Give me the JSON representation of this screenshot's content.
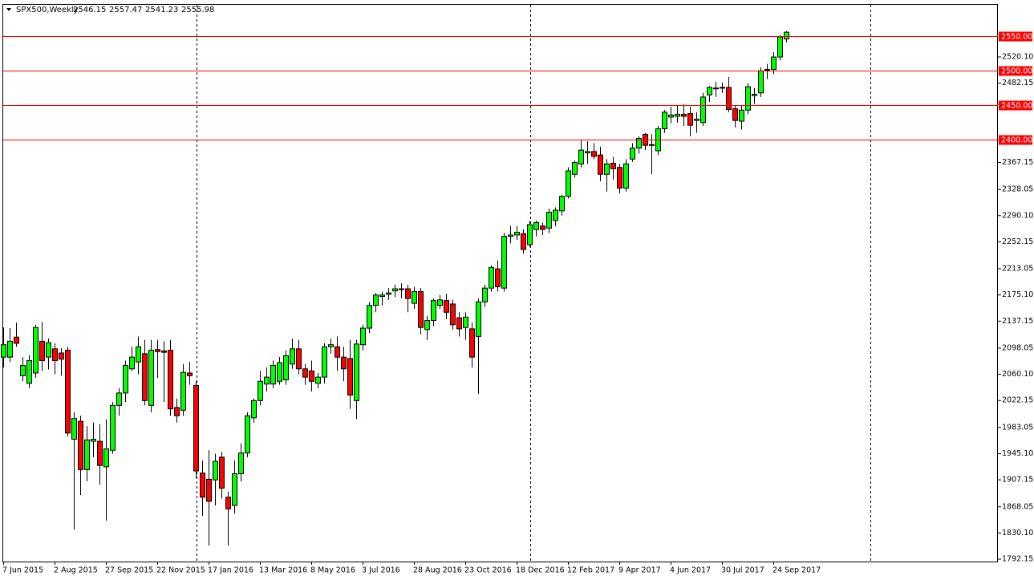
{
  "chart_data": {
    "type": "candlestick",
    "title": "SPX500,Weekly",
    "up_color": "#00ff00",
    "down_color": "#ff0000",
    "level_color": "#ff0000",
    "ylim": [
      1788.7,
      2596.8
    ],
    "yticks": [
      {
        "value": 2520.1,
        "label": "2520.10"
      },
      2482.15,
      2367.15,
      2328.05,
      {
        "value": 2290.1,
        "label": "2290.10"
      },
      2252.15,
      2213.05,
      {
        "value": 2175.1,
        "label": "2175.10"
      },
      2137.15,
      2098.05,
      {
        "value": 2060.1,
        "label": "2060.10"
      },
      2022.15,
      1983.05,
      {
        "value": 1945.1,
        "label": "1945.10"
      },
      1907.15,
      1868.05,
      {
        "value": 1830.1,
        "label": "1830.10"
      },
      1792.15
    ],
    "levels": [
      {
        "value": 2550,
        "label": "2550.00"
      },
      {
        "value": 2500,
        "label": "2500.00"
      },
      {
        "value": 2450,
        "label": "2450.00"
      },
      {
        "value": 2400,
        "label": "2400.00"
      }
    ],
    "categories": [
      "7 Jun 2015",
      null,
      null,
      null,
      null,
      null,
      null,
      null,
      "2 Aug 2015",
      null,
      null,
      null,
      null,
      null,
      null,
      null,
      "27 Sep 2015",
      null,
      null,
      null,
      null,
      null,
      null,
      null,
      "22 Nov 2015",
      null,
      null,
      null,
      null,
      null,
      null,
      null,
      "17 Jan 2016",
      null,
      null,
      null,
      null,
      null,
      null,
      null,
      "13 Mar 2016",
      null,
      null,
      null,
      null,
      null,
      null,
      null,
      "8 May 2016",
      null,
      null,
      null,
      null,
      null,
      null,
      null,
      "3 Jul 2016",
      null,
      null,
      null,
      null,
      null,
      null,
      null,
      "28 Aug 2016",
      null,
      null,
      null,
      null,
      null,
      null,
      null,
      "23 Oct 2016",
      null,
      null,
      null,
      null,
      null,
      null,
      null,
      "18 Dec 2016",
      null,
      null,
      null,
      null,
      null,
      null,
      null,
      "12 Feb 2017",
      null,
      null,
      null,
      null,
      null,
      null,
      null,
      "9 Apr 2017",
      null,
      null,
      null,
      null,
      null,
      null,
      null,
      "4 Jun 2017",
      null,
      null,
      null,
      null,
      null,
      null,
      null,
      "30 Jul 2017",
      null,
      null,
      null,
      null,
      null,
      null,
      null,
      "24 Sep 2017",
      null,
      null
    ],
    "ohlc": [
      [
        2085,
        2128,
        2070,
        2103
      ],
      [
        2085,
        2127,
        2078,
        2108
      ],
      [
        2114,
        2135,
        2100,
        2105
      ],
      [
        2058,
        2085,
        2050,
        2073
      ],
      [
        2047,
        2088,
        2040,
        2080
      ],
      [
        2062,
        2132,
        2055,
        2128
      ],
      [
        2108,
        2136,
        2065,
        2080
      ],
      [
        2085,
        2112,
        2067,
        2106
      ],
      [
        2097,
        2105,
        2060,
        2080
      ],
      [
        2091,
        2098,
        2058,
        2082
      ],
      [
        2095,
        2100,
        1970,
        1975
      ],
      [
        1966,
        2005,
        1835,
        1996
      ],
      [
        1992,
        2000,
        1885,
        1922
      ],
      [
        1922,
        1985,
        1905,
        1965
      ],
      [
        1963,
        1990,
        1940,
        1966
      ],
      [
        1963,
        1988,
        1900,
        1928
      ],
      [
        1926,
        1995,
        1848,
        1952
      ],
      [
        1950,
        2020,
        1945,
        2015
      ],
      [
        2015,
        2040,
        2000,
        2033
      ],
      [
        2033,
        2080,
        2020,
        2073
      ],
      [
        2068,
        2100,
        2065,
        2085
      ],
      [
        2078,
        2115,
        2060,
        2100
      ],
      [
        2090,
        2110,
        2015,
        2022
      ],
      [
        2015,
        2110,
        2005,
        2095
      ],
      [
        2096,
        2110,
        2055,
        2093
      ],
      [
        2094,
        2108,
        2020,
        2092
      ],
      [
        2095,
        2110,
        2000,
        2010
      ],
      [
        2012,
        2025,
        1990,
        2000
      ],
      [
        2008,
        2075,
        2000,
        2063
      ],
      [
        2062,
        2078,
        2045,
        2058
      ],
      [
        2044,
        2050,
        1910,
        1920
      ],
      [
        1917,
        1935,
        1855,
        1882
      ],
      [
        1908,
        1950,
        1812,
        1876
      ],
      [
        1907,
        1945,
        1870,
        1934
      ],
      [
        1940,
        1948,
        1880,
        1895
      ],
      [
        1882,
        1890,
        1812,
        1865
      ],
      [
        1870,
        1935,
        1858,
        1916
      ],
      [
        1916,
        1960,
        1905,
        1946
      ],
      [
        1946,
        2005,
        1940,
        2000
      ],
      [
        1997,
        2025,
        1990,
        2022
      ],
      [
        2022,
        2065,
        2015,
        2050
      ],
      [
        2046,
        2070,
        2035,
        2056
      ],
      [
        2046,
        2080,
        2040,
        2073
      ],
      [
        2050,
        2085,
        2045,
        2077
      ],
      [
        2052,
        2095,
        2045,
        2087
      ],
      [
        2075,
        2112,
        2068,
        2097
      ],
      [
        2097,
        2110,
        2060,
        2068
      ],
      [
        2068,
        2075,
        2045,
        2056
      ],
      [
        2065,
        2080,
        2035,
        2050
      ],
      [
        2047,
        2062,
        2040,
        2056
      ],
      [
        2056,
        2105,
        2047,
        2100
      ],
      [
        2100,
        2112,
        2090,
        2103
      ],
      [
        2100,
        2115,
        2065,
        2085
      ],
      [
        2085,
        2100,
        2050,
        2068
      ],
      [
        2083,
        2110,
        2010,
        2030
      ],
      [
        2022,
        2110,
        1995,
        2104
      ],
      [
        2103,
        2132,
        2095,
        2127
      ],
      [
        2127,
        2165,
        2120,
        2160
      ],
      [
        2160,
        2178,
        2150,
        2175
      ],
      [
        2173,
        2180,
        2160,
        2175
      ],
      [
        2176,
        2185,
        2168,
        2178
      ],
      [
        2181,
        2190,
        2172,
        2184
      ],
      [
        2183,
        2192,
        2170,
        2184
      ],
      [
        2184,
        2190,
        2150,
        2170
      ],
      [
        2163,
        2187,
        2155,
        2180
      ],
      [
        2180,
        2185,
        2118,
        2128
      ],
      [
        2125,
        2145,
        2110,
        2138
      ],
      [
        2138,
        2170,
        2130,
        2167
      ],
      [
        2160,
        2175,
        2155,
        2168
      ],
      [
        2167,
        2177,
        2140,
        2150
      ],
      [
        2162,
        2168,
        2125,
        2132
      ],
      [
        2142,
        2150,
        2115,
        2126
      ],
      [
        2128,
        2150,
        2110,
        2143
      ],
      [
        2126,
        2135,
        2070,
        2085
      ],
      [
        2115,
        2170,
        2032,
        2165
      ],
      [
        2165,
        2190,
        2158,
        2185
      ],
      [
        2185,
        2218,
        2180,
        2215
      ],
      [
        2213,
        2225,
        2180,
        2187
      ],
      [
        2185,
        2265,
        2180,
        2260
      ],
      [
        2260,
        2275,
        2250,
        2262
      ],
      [
        2262,
        2275,
        2255,
        2266
      ],
      [
        2264,
        2270,
        2235,
        2241
      ],
      [
        2248,
        2282,
        2245,
        2277
      ],
      [
        2270,
        2283,
        2260,
        2280
      ],
      [
        2275,
        2280,
        2262,
        2270
      ],
      [
        2272,
        2300,
        2265,
        2295
      ],
      [
        2283,
        2302,
        2275,
        2298
      ],
      [
        2297,
        2320,
        2290,
        2318
      ],
      [
        2318,
        2360,
        2315,
        2355
      ],
      [
        2350,
        2370,
        2345,
        2367
      ],
      [
        2365,
        2400,
        2360,
        2385
      ],
      [
        2381,
        2398,
        2365,
        2383
      ],
      [
        2383,
        2395,
        2372,
        2376
      ],
      [
        2378,
        2390,
        2340,
        2350
      ],
      [
        2350,
        2372,
        2325,
        2365
      ],
      [
        2366,
        2375,
        2342,
        2358
      ],
      [
        2360,
        2365,
        2322,
        2330
      ],
      [
        2330,
        2372,
        2325,
        2365
      ],
      [
        2372,
        2395,
        2368,
        2388
      ],
      [
        2388,
        2405,
        2380,
        2402
      ],
      [
        2408,
        2410,
        2385,
        2392
      ],
      [
        2392,
        2408,
        2350,
        2393
      ],
      [
        2384,
        2420,
        2378,
        2416
      ],
      [
        2416,
        2443,
        2410,
        2440
      ],
      [
        2433,
        2448,
        2424,
        2436
      ],
      [
        2434,
        2450,
        2425,
        2437
      ],
      [
        2437,
        2452,
        2420,
        2434
      ],
      [
        2438,
        2448,
        2405,
        2421
      ],
      [
        2428,
        2440,
        2410,
        2430
      ],
      [
        2425,
        2468,
        2420,
        2462
      ],
      [
        2465,
        2478,
        2455,
        2476
      ],
      [
        2474,
        2484,
        2462,
        2475
      ],
      [
        2476,
        2483,
        2468,
        2476
      ],
      [
        2476,
        2491,
        2440,
        2444
      ],
      [
        2445,
        2450,
        2418,
        2428
      ],
      [
        2427,
        2450,
        2415,
        2443
      ],
      [
        2443,
        2482,
        2437,
        2477
      ],
      [
        2464,
        2475,
        2452,
        2466
      ],
      [
        2468,
        2505,
        2462,
        2500
      ],
      [
        2501,
        2510,
        2488,
        2502
      ],
      [
        2502,
        2527,
        2495,
        2520
      ],
      [
        2520,
        2552,
        2515,
        2549
      ],
      [
        2546.15,
        2557.47,
        2541.23,
        2555.98
      ]
    ]
  }
}
